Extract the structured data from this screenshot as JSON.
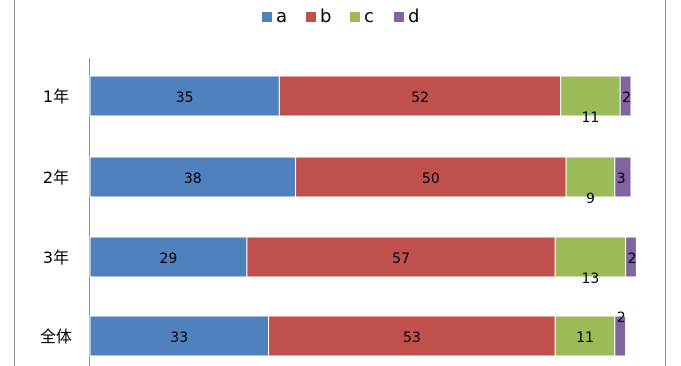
{
  "chart_data": {
    "type": "bar",
    "orientation": "horizontal",
    "stacked": "100%",
    "categories": [
      "1年",
      "2年",
      "3年",
      "全体"
    ],
    "series": [
      {
        "name": "a",
        "color": "#4f81bd",
        "values": [
          35,
          38,
          29,
          33
        ]
      },
      {
        "name": "b",
        "color": "#c0504d",
        "values": [
          52,
          50,
          57,
          53
        ]
      },
      {
        "name": "c",
        "color": "#9bbb59",
        "values": [
          11,
          9,
          13,
          11
        ]
      },
      {
        "name": "d",
        "color": "#8064a2",
        "values": [
          2,
          3,
          2,
          2
        ]
      }
    ],
    "xlim": [
      0,
      100
    ],
    "legend_position": "top",
    "grid": false
  }
}
